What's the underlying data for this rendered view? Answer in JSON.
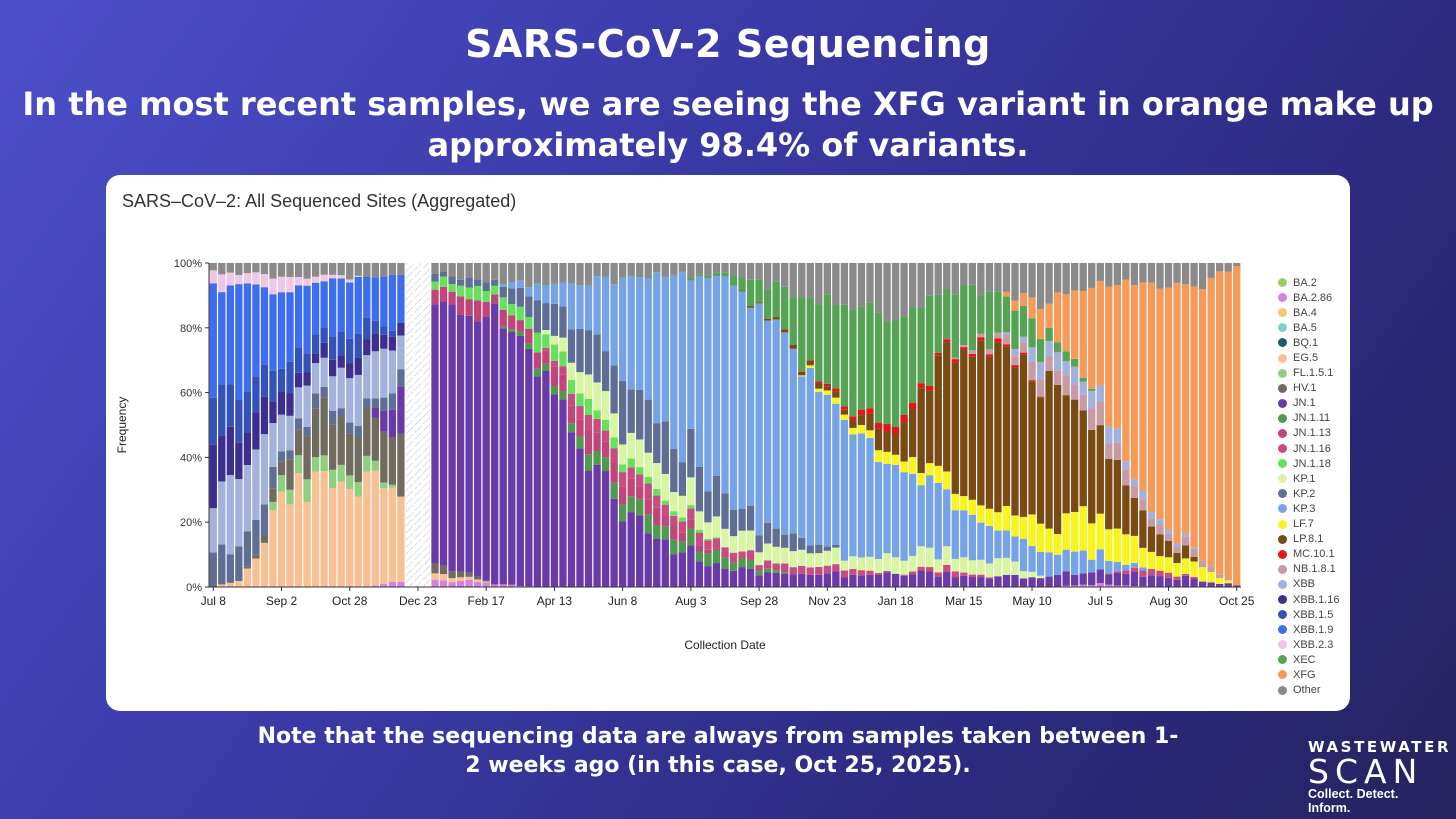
{
  "slide": {
    "title": "SARS-CoV-2 Sequencing",
    "subtitle": "In the most recent samples, we are seeing the XFG variant in orange make up approximately 98.4% of variants.",
    "note": "Note that the sequencing data are always from samples taken between 1-2 weeks ago (in this case, Oct 25, 2025).",
    "logo": {
      "line1": "WASTEWATER",
      "line2": "SCAN",
      "line3": "Collect. Detect. Inform."
    }
  },
  "colors": {
    "BA.2": "#9ccc65",
    "BA.2.86": "#d580e0",
    "BA.4": "#f5c770",
    "BA.5": "#7fcfc8",
    "BQ.1": "#1b5e64",
    "EG.5": "#f8c093",
    "FL.1.5.1": "#8fcf7f",
    "HV.1": "#706b5e",
    "JN.1": "#6a3aa8",
    "JN.1.11": "#4f9a4f",
    "JN.1.13": "#c2457a",
    "JN.1.16": "#c84d7e",
    "JN.1.18": "#66e25a",
    "KP.1": "#d8f5a2",
    "KP.2": "#5e6e94",
    "KP.3": "#76a3e6",
    "LF.7": "#f8f51e",
    "LP.8.1": "#7a4a13",
    "MC.10.1": "#e8141a",
    "NB.1.8.1": "#c79aa6",
    "XBB": "#a3b2dc",
    "XBB.1.16": "#3c2f8f",
    "XBB.1.5": "#3452b8",
    "XBB.1.9": "#3e6ef0",
    "XBB.2.3": "#f0c6e6",
    "XEC": "#56a356",
    "XFG": "#f69a5a",
    "Other": "#8a8a8a"
  },
  "chart_data": {
    "type": "bar",
    "stacked": true,
    "title": "SARS–CoV–2: All Sequenced Sites (Aggregated)",
    "xlabel": "Collection Date",
    "ylabel": "Frequency",
    "ylim": [
      0,
      1
    ],
    "yticks": [
      "0%",
      "20%",
      "40%",
      "60%",
      "80%",
      "100%"
    ],
    "xticks": [
      "Jul 8",
      "Sep 2",
      "Oct 28",
      "Dec 23",
      "Feb 17",
      "Apr 13",
      "Jun 8",
      "Aug 3",
      "Sep 28",
      "Nov 23",
      "Jan 18",
      "Mar 15",
      "May 10",
      "Jul 5",
      "Aug 30",
      "Oct 25"
    ],
    "tick_weeks": [
      0,
      8,
      16,
      24,
      32,
      40,
      48,
      56,
      64,
      72,
      80,
      88,
      96,
      104,
      112,
      120
    ],
    "legend": [
      "BA.2",
      "BA.2.86",
      "BA.4",
      "BA.5",
      "BQ.1",
      "EG.5",
      "FL.1.5.1",
      "HV.1",
      "JN.1",
      "JN.1.11",
      "JN.1.13",
      "JN.1.16",
      "JN.1.18",
      "KP.1",
      "KP.2",
      "KP.3",
      "LF.7",
      "LP.8.1",
      "MC.10.1",
      "NB.1.8.1",
      "XBB",
      "XBB.1.16",
      "XBB.1.5",
      "XBB.1.9",
      "XBB.2.3",
      "XEC",
      "XFG",
      "Other"
    ],
    "legend_position": "right",
    "gap_weeks": [
      23,
      24,
      25
    ],
    "keyframes": [
      {
        "week": 0,
        "mix": {
          "XBB": 0.13,
          "XBB.1.16": 0.2,
          "XBB.1.5": 0.15,
          "XBB.1.9": 0.34,
          "KP.2": 0.1,
          "XBB.2.3": 0.05,
          "Other": 0.03
        }
      },
      {
        "week": 3,
        "mix": {
          "XBB": 0.22,
          "XBB.1.16": 0.12,
          "XBB.1.5": 0.12,
          "XBB.1.9": 0.36,
          "KP.2": 0.1,
          "EG.5": 0.02,
          "XBB.2.3": 0.03,
          "Other": 0.03
        }
      },
      {
        "week": 6,
        "mix": {
          "EG.5": 0.12,
          "XBB": 0.2,
          "XBB.1.16": 0.1,
          "XBB.1.5": 0.1,
          "XBB.1.9": 0.3,
          "KP.2": 0.08,
          "HV.1": 0.02,
          "XBB.2.3": 0.04,
          "Other": 0.04
        }
      },
      {
        "week": 8,
        "mix": {
          "EG.5": 0.3,
          "FL.1.5.1": 0.05,
          "XBB": 0.12,
          "XBB.1.16": 0.07,
          "XBB.1.5": 0.08,
          "XBB.1.9": 0.22,
          "HV.1": 0.05,
          "KP.2": 0.03,
          "XBB.2.3": 0.04,
          "Other": 0.04
        }
      },
      {
        "week": 12,
        "mix": {
          "EG.5": 0.32,
          "FL.1.5.1": 0.06,
          "HV.1": 0.14,
          "XBB": 0.1,
          "XBB.1.16": 0.04,
          "XBB.1.5": 0.06,
          "XBB.1.9": 0.18,
          "KP.2": 0.04,
          "XBB.2.3": 0.02,
          "Other": 0.04
        }
      },
      {
        "week": 18,
        "mix": {
          "EG.5": 0.33,
          "FL.1.5.1": 0.04,
          "HV.1": 0.16,
          "XBB": 0.14,
          "XBB.1.16": 0.05,
          "XBB.1.5": 0.06,
          "XBB.1.9": 0.15,
          "KP.2": 0.03,
          "Other": 0.04
        }
      },
      {
        "week": 22,
        "mix": {
          "EG.5": 0.25,
          "HV.1": 0.2,
          "JN.1": 0.15,
          "XBB.1.16": 0.05,
          "XBB": 0.1,
          "XBB.1.9": 0.14,
          "KP.2": 0.05,
          "BA.2.86": 0.02,
          "Other": 0.04
        }
      },
      {
        "week": 26,
        "mix": {
          "JN.1": 0.8,
          "JN.1.13": 0.05,
          "HV.1": 0.03,
          "BA.2.86": 0.02,
          "EG.5": 0.02,
          "JN.1.18": 0.03,
          "KP.2": 0.02,
          "Other": 0.03
        }
      },
      {
        "week": 33,
        "mix": {
          "JN.1": 0.85,
          "JN.1.13": 0.04,
          "JN.1.18": 0.03,
          "KP.2": 0.02,
          "BA.2.86": 0.01,
          "Other": 0.05
        }
      },
      {
        "week": 38,
        "mix": {
          "JN.1": 0.7,
          "JN.1.13": 0.05,
          "JN.1.18": 0.04,
          "KP.2": 0.09,
          "KP.3": 0.04,
          "JN.1.11": 0.02,
          "Other": 0.06
        }
      },
      {
        "week": 44,
        "mix": {
          "JN.1": 0.38,
          "JN.1.11": 0.04,
          "JN.1.13": 0.06,
          "JN.1.16": 0.05,
          "JN.1.18": 0.04,
          "KP.1": 0.08,
          "KP.2": 0.15,
          "KP.3": 0.15,
          "Other": 0.05
        }
      },
      {
        "week": 52,
        "mix": {
          "JN.1": 0.15,
          "JN.1.11": 0.05,
          "JN.1.13": 0.05,
          "JN.1.16": 0.04,
          "JN.1.18": 0.02,
          "KP.1": 0.08,
          "KP.2": 0.17,
          "KP.3": 0.4,
          "Other": 0.04
        }
      },
      {
        "week": 60,
        "mix": {
          "JN.1": 0.06,
          "JN.1.11": 0.03,
          "JN.1.16": 0.03,
          "KP.1": 0.06,
          "KP.2": 0.1,
          "KP.3": 0.68,
          "XEC": 0.01,
          "Other": 0.03
        }
      },
      {
        "week": 68,
        "mix": {
          "JN.1": 0.04,
          "KP.1": 0.05,
          "KP.2": 0.04,
          "KP.3": 0.6,
          "XEC": 0.15,
          "LP.8.1": 0.01,
          "JN.1.16": 0.02,
          "Other": 0.09
        }
      },
      {
        "week": 74,
        "mix": {
          "JN.1": 0.04,
          "KP.1": 0.04,
          "KP.3": 0.38,
          "XEC": 0.35,
          "LF.7": 0.02,
          "MC.10.1": 0.01,
          "LP.8.1": 0.02,
          "JN.1.16": 0.02,
          "Other": 0.12
        }
      },
      {
        "week": 80,
        "mix": {
          "JN.1": 0.04,
          "KP.1": 0.05,
          "KP.3": 0.3,
          "XEC": 0.35,
          "LP.8.1": 0.07,
          "LF.7": 0.03,
          "MC.10.1": 0.02,
          "Other": 0.14
        }
      },
      {
        "week": 86,
        "mix": {
          "JN.1": 0.04,
          "KP.1": 0.05,
          "KP.3": 0.18,
          "XEC": 0.2,
          "LP.8.1": 0.35,
          "LF.7": 0.05,
          "MC.10.1": 0.01,
          "JN.1.16": 0.02,
          "Other": 0.1
        }
      },
      {
        "week": 92,
        "mix": {
          "JN.1": 0.03,
          "KP.1": 0.05,
          "KP.3": 0.1,
          "XEC": 0.15,
          "LP.8.1": 0.5,
          "LF.7": 0.06,
          "NB.1.8.1": 0.02,
          "MC.10.1": 0.01,
          "Other": 0.08
        }
      },
      {
        "week": 98,
        "mix": {
          "JN.1": 0.03,
          "KP.3": 0.08,
          "LP.8.1": 0.45,
          "XFG": 0.1,
          "LF.7": 0.08,
          "NB.1.8.1": 0.05,
          "XBB": 0.05,
          "XEC": 0.04,
          "Other": 0.12
        }
      },
      {
        "week": 104,
        "mix": {
          "JN.1": 0.04,
          "KP.3": 0.05,
          "LP.8.1": 0.28,
          "XFG": 0.32,
          "LF.7": 0.12,
          "NB.1.8.1": 0.06,
          "XBB": 0.05,
          "BA.2.86": 0.01,
          "Other": 0.07
        }
      },
      {
        "week": 110,
        "mix": {
          "JN.1": 0.04,
          "LP.8.1": 0.08,
          "XFG": 0.7,
          "LF.7": 0.05,
          "NB.1.8.1": 0.03,
          "XBB": 0.02,
          "JN.1.16": 0.02,
          "Other": 0.06
        }
      },
      {
        "week": 116,
        "mix": {
          "JN.1": 0.02,
          "XFG": 0.85,
          "LF.7": 0.04,
          "NB.1.8.1": 0.02,
          "Other": 0.07
        }
      },
      {
        "week": 120,
        "mix": {
          "XFG": 0.984,
          "JN.1": 0.006,
          "Other": 0.01
        }
      }
    ]
  }
}
